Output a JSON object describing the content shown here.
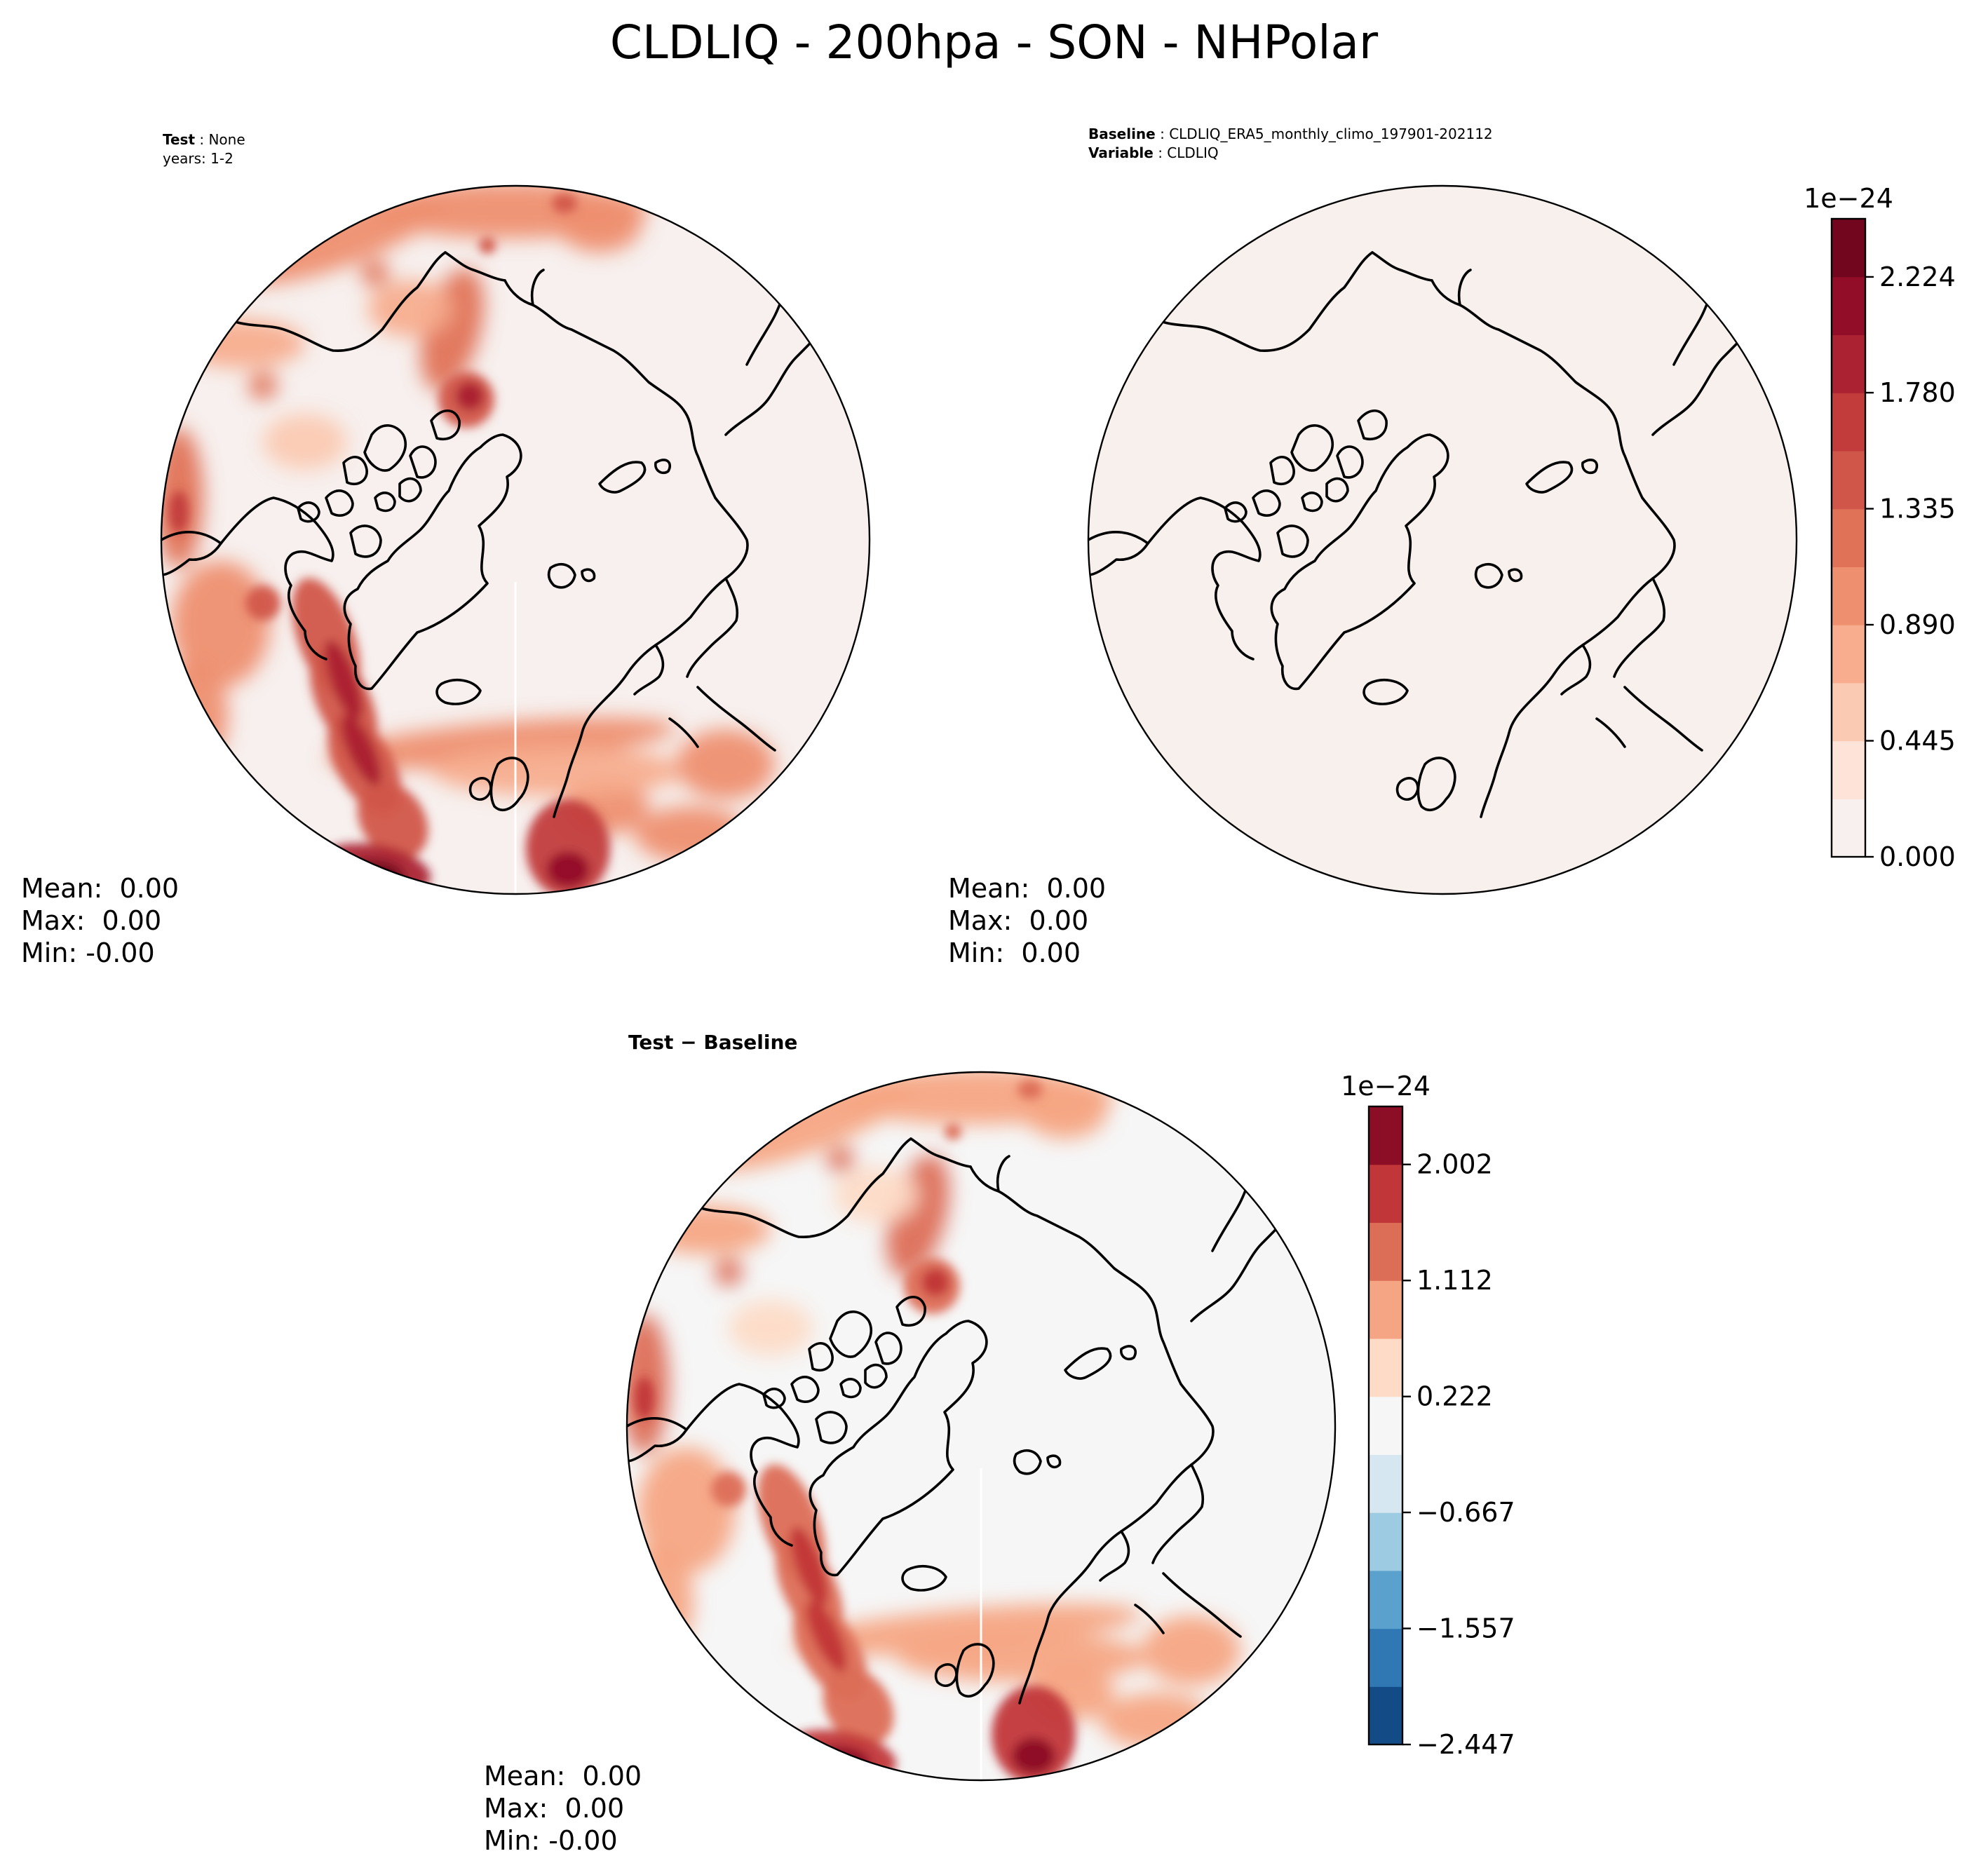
{
  "figure": {
    "title": "CLDLIQ - 200hpa - SON - NHPolar"
  },
  "panels": [
    {
      "id": "test",
      "meta": [
        {
          "label": "Test",
          "value": "None"
        },
        {
          "label": "",
          "value": "years: 1-2"
        }
      ],
      "stats": {
        "mean": "Mean:  0.00",
        "max": "Max:  0.00",
        "min": "Min: -0.00"
      }
    },
    {
      "id": "baseline",
      "meta": [
        {
          "label": "Baseline",
          "value": "CLDLIQ_ERA5_monthly_climo_197901-202112"
        },
        {
          "label": "Variable",
          "value": "CLDLIQ"
        }
      ],
      "stats": {
        "mean": "Mean:  0.00",
        "max": "Max:  0.00",
        "min": "Min:  0.00"
      }
    },
    {
      "id": "difference",
      "title": "Test − Baseline",
      "stats": {
        "mean": "Mean:  0.00",
        "max": "Max:  0.00",
        "min": "Min: -0.00"
      }
    }
  ],
  "chart_data": [
    {
      "type": "heatmap",
      "panel": "test",
      "colorbar": {
        "offset_label": "1e−24",
        "ticks": [
          "0.000",
          "0.445",
          "0.890",
          "1.335",
          "1.780",
          "2.224"
        ],
        "tick_values": [
          0.0,
          0.445,
          0.89,
          1.335,
          1.78,
          2.224
        ],
        "range": [
          0.0,
          2.447
        ],
        "levels": 11,
        "colors": [
          "#f7f0ee",
          "#fde3d8",
          "#fbcab3",
          "#f7ad8e",
          "#ee8f70",
          "#e07257",
          "#d1564a",
          "#c23c3c",
          "#ab2232",
          "#920e28",
          "#73061f"
        ]
      }
    },
    {
      "type": "heatmap",
      "panel": "baseline",
      "field_color": "#f8f0ed"
    },
    {
      "type": "heatmap",
      "panel": "difference",
      "colorbar": {
        "offset_label": "1e−24",
        "ticks": [
          "−2.447",
          "−1.557",
          "−0.667",
          "0.222",
          "1.112",
          "2.002"
        ],
        "tick_values": [
          -2.447,
          -1.557,
          -0.667,
          0.222,
          1.112,
          2.002
        ],
        "range": [
          -2.447,
          2.447
        ],
        "colors": [
          "#134b87",
          "#2f78b4",
          "#5aa2cd",
          "#9dcbe1",
          "#d6e7f1",
          "#f6f6f6",
          "#fddbc7",
          "#f5a583",
          "#dc6e57",
          "#c13638",
          "#8c0d26"
        ]
      },
      "field_color": "#f6f6f6"
    }
  ]
}
